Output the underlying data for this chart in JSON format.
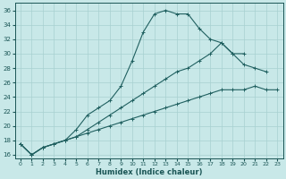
{
  "xlabel": "Humidex (Indice chaleur)",
  "xlim": [
    -0.5,
    23.5
  ],
  "ylim": [
    15.5,
    37
  ],
  "yticks": [
    16,
    18,
    20,
    22,
    24,
    26,
    28,
    30,
    32,
    34,
    36
  ],
  "xticks": [
    0,
    1,
    2,
    3,
    4,
    5,
    6,
    7,
    8,
    9,
    10,
    11,
    12,
    13,
    14,
    15,
    16,
    17,
    18,
    19,
    20,
    21,
    22,
    23
  ],
  "bg_color": "#c8e8e8",
  "grid_color": "#a8d0d0",
  "line_color": "#206060",
  "line1_y": [
    17.5,
    16.0,
    17.0,
    17.5,
    18.0,
    19.5,
    21.5,
    22.5,
    23.5,
    25.5,
    29.0,
    33.0,
    35.5,
    36.0,
    35.5,
    35.5,
    33.5,
    32.0,
    31.5,
    30.0,
    28.5,
    28.0,
    27.5,
    null
  ],
  "line2_y": [
    17.5,
    16.0,
    17.0,
    17.5,
    18.0,
    18.5,
    19.5,
    20.5,
    21.5,
    22.5,
    23.5,
    24.5,
    25.5,
    26.5,
    27.5,
    28.0,
    29.0,
    30.0,
    31.5,
    30.0,
    30.0,
    null,
    null,
    null
  ],
  "line3_y": [
    17.5,
    16.0,
    17.0,
    17.5,
    18.0,
    18.5,
    19.0,
    19.5,
    20.0,
    20.5,
    21.0,
    21.5,
    22.0,
    22.5,
    23.0,
    23.5,
    24.0,
    24.5,
    25.0,
    25.0,
    25.0,
    25.5,
    25.0,
    25.0
  ]
}
